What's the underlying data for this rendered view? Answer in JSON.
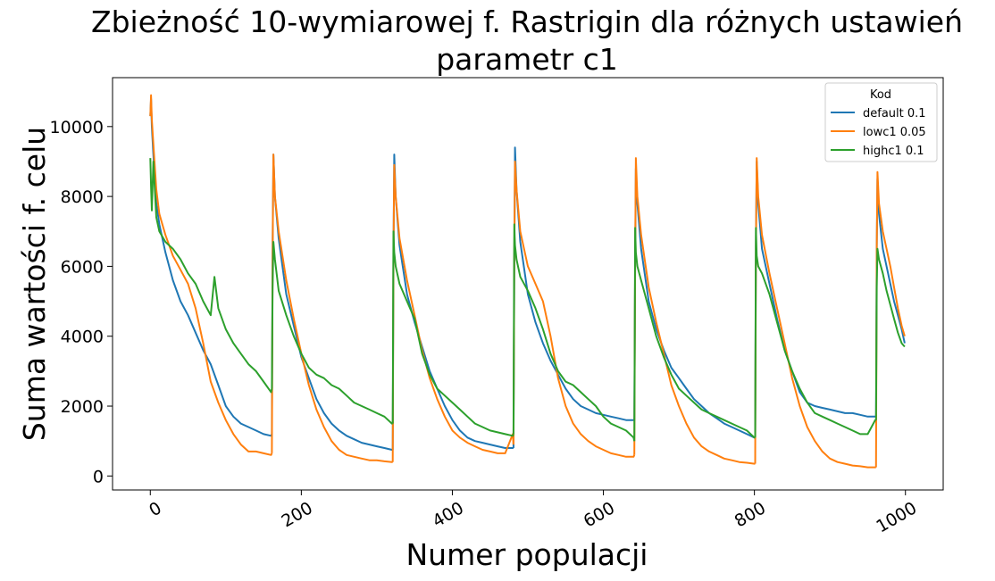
{
  "chart_data": {
    "type": "line",
    "title_line1": "Zbieżność 10-wymiarowej f. Rastrigin dla różnych ustawień",
    "title_line2": "parametr c1",
    "xlabel": "Numer populacji",
    "ylabel": "Suma wartości f. celu",
    "xlim": [
      -50,
      1050
    ],
    "ylim": [
      -400,
      11400
    ],
    "xticks": [
      0,
      200,
      400,
      600,
      800,
      1000
    ],
    "yticks": [
      0,
      2000,
      4000,
      6000,
      8000,
      10000
    ],
    "xtick_rotation": 30,
    "grid": false,
    "legend": {
      "title": "Kod",
      "position": "top-right"
    },
    "series": [
      {
        "name": "default 0.1",
        "color": "#1f77b4",
        "segments": [
          {
            "x": [
              0,
              1,
              2,
              4,
              8,
              12,
              20,
              30,
              40,
              50,
              60,
              70,
              80,
              90,
              100,
              110,
              120,
              130,
              140,
              150,
              160,
              161
            ],
            "y": [
              10300,
              10800,
              10000,
              9200,
              7800,
              7200,
              6400,
              5600,
              5000,
              4600,
              4100,
              3600,
              3200,
              2600,
              2000,
              1700,
              1500,
              1400,
              1300,
              1200,
              1150,
              1200
            ]
          },
          {
            "x": [
              161,
              162,
              163,
              165,
              170,
              180,
              190,
              200,
              210,
              220,
              230,
              240,
              250,
              260,
              270,
              280,
              290,
              300,
              310,
              320,
              321
            ],
            "y": [
              1200,
              6500,
              9200,
              8000,
              6800,
              5200,
              4300,
              3400,
              2800,
              2200,
              1800,
              1500,
              1300,
              1150,
              1050,
              950,
              900,
              850,
              800,
              750,
              750
            ]
          },
          {
            "x": [
              321,
              322,
              323,
              325,
              330,
              340,
              350,
              360,
              370,
              380,
              390,
              400,
              410,
              420,
              430,
              440,
              450,
              460,
              470,
              480,
              481
            ],
            "y": [
              750,
              6200,
              9200,
              8000,
              6600,
              5200,
              4400,
              3700,
              3000,
              2500,
              2000,
              1600,
              1300,
              1100,
              1000,
              950,
              900,
              850,
              800,
              800,
              800
            ]
          },
          {
            "x": [
              481,
              482,
              483,
              485,
              490,
              500,
              510,
              520,
              530,
              540,
              550,
              560,
              570,
              580,
              590,
              600,
              610,
              620,
              630,
              640,
              641
            ],
            "y": [
              800,
              6000,
              9400,
              8200,
              6700,
              5200,
              4400,
              3800,
              3300,
              2900,
              2500,
              2200,
              2000,
              1900,
              1800,
              1750,
              1700,
              1650,
              1600,
              1600,
              1600
            ]
          },
          {
            "x": [
              641,
              642,
              643,
              645,
              650,
              660,
              670,
              680,
              690,
              700,
              710,
              720,
              730,
              740,
              750,
              760,
              770,
              780,
              790,
              800,
              801
            ],
            "y": [
              1600,
              6000,
              8800,
              7800,
              6500,
              5000,
              4200,
              3600,
              3100,
              2800,
              2500,
              2200,
              2000,
              1800,
              1650,
              1500,
              1400,
              1300,
              1200,
              1100,
              1100
            ]
          },
          {
            "x": [
              801,
              802,
              803,
              805,
              810,
              820,
              830,
              840,
              850,
              860,
              870,
              880,
              890,
              900,
              910,
              920,
              930,
              940,
              950,
              960,
              961
            ],
            "y": [
              1100,
              6500,
              9000,
              7800,
              6500,
              5500,
              4500,
              3600,
              3000,
              2400,
              2100,
              2000,
              1950,
              1900,
              1850,
              1800,
              1800,
              1750,
              1700,
              1700,
              1700
            ]
          },
          {
            "x": [
              961,
              962,
              963,
              965,
              970,
              975,
              980,
              985,
              990,
              995,
              999
            ],
            "y": [
              1700,
              6500,
              8500,
              7500,
              6500,
              6000,
              5500,
              5000,
              4600,
              4200,
              3800
            ]
          }
        ]
      },
      {
        "name": "lowc1 0.05",
        "color": "#ff7f0e",
        "segments": [
          {
            "x": [
              0,
              1,
              2,
              4,
              8,
              12,
              20,
              30,
              40,
              50,
              60,
              70,
              80,
              90,
              100,
              110,
              120,
              130,
              140,
              150,
              160,
              161
            ],
            "y": [
              10300,
              10900,
              10200,
              9500,
              8200,
              7500,
              6900,
              6300,
              5900,
              5500,
              4800,
              3800,
              2700,
              2100,
              1600,
              1200,
              900,
              700,
              700,
              650,
              600,
              650
            ]
          },
          {
            "x": [
              161,
              162,
              163,
              165,
              170,
              180,
              190,
              200,
              210,
              220,
              230,
              240,
              250,
              260,
              270,
              280,
              290,
              300,
              310,
              320,
              321
            ],
            "y": [
              650,
              6300,
              9200,
              8000,
              7000,
              5600,
              4500,
              3500,
              2600,
              1900,
              1400,
              1000,
              750,
              600,
              550,
              500,
              450,
              450,
              420,
              400,
              400
            ]
          },
          {
            "x": [
              321,
              322,
              323,
              325,
              330,
              340,
              350,
              360,
              370,
              380,
              390,
              400,
              410,
              420,
              430,
              440,
              450,
              460,
              470,
              480,
              481
            ],
            "y": [
              400,
              6300,
              8900,
              8000,
              6800,
              5600,
              4600,
              3600,
              2800,
              2200,
              1700,
              1300,
              1100,
              950,
              850,
              750,
              700,
              650,
              650,
              1200,
              900
            ]
          },
          {
            "x": [
              481,
              482,
              483,
              485,
              490,
              500,
              510,
              520,
              530,
              540,
              550,
              560,
              570,
              580,
              590,
              600,
              610,
              620,
              630,
              640,
              641
            ],
            "y": [
              900,
              6200,
              9000,
              8200,
              7000,
              6000,
              5500,
              5000,
              4000,
              2800,
              2000,
              1500,
              1200,
              1000,
              850,
              750,
              650,
              600,
              550,
              550,
              600
            ]
          },
          {
            "x": [
              641,
              642,
              643,
              645,
              650,
              660,
              670,
              680,
              690,
              700,
              710,
              720,
              730,
              740,
              750,
              760,
              770,
              780,
              790,
              800,
              801
            ],
            "y": [
              600,
              6200,
              9100,
              8000,
              6900,
              5400,
              4400,
              3500,
              2600,
              2000,
              1500,
              1100,
              850,
              700,
              600,
              500,
              450,
              400,
              380,
              350,
              350
            ]
          },
          {
            "x": [
              801,
              802,
              803,
              805,
              810,
              820,
              830,
              840,
              850,
              860,
              870,
              880,
              890,
              900,
              910,
              920,
              930,
              940,
              950,
              960,
              961
            ],
            "y": [
              350,
              6300,
              9100,
              8000,
              6900,
              5800,
              4800,
              3800,
              2800,
              2000,
              1400,
              1000,
              700,
              500,
              400,
              350,
              300,
              280,
              250,
              250,
              250
            ]
          },
          {
            "x": [
              961,
              962,
              963,
              965,
              970,
              975,
              980,
              985,
              990,
              995,
              999
            ],
            "y": [
              250,
              6500,
              8700,
              7800,
              7000,
              6500,
              6000,
              5400,
              4800,
              4300,
              4000
            ]
          }
        ]
      },
      {
        "name": "highc1 0.1",
        "color": "#2ca02c",
        "segments": [
          {
            "x": [
              0,
              1,
              2,
              4,
              8,
              12,
              20,
              30,
              40,
              50,
              60,
              70,
              80,
              85,
              90,
              100,
              110,
              120,
              130,
              140,
              150,
              160,
              161
            ],
            "y": [
              9100,
              8300,
              7600,
              9000,
              7400,
              7000,
              6700,
              6500,
              6200,
              5800,
              5500,
              5000,
              4600,
              5700,
              4800,
              4200,
              3800,
              3500,
              3200,
              3000,
              2700,
              2400,
              2500
            ]
          },
          {
            "x": [
              161,
              162,
              163,
              165,
              170,
              180,
              190,
              200,
              210,
              220,
              230,
              240,
              250,
              260,
              270,
              280,
              290,
              300,
              310,
              320,
              321
            ],
            "y": [
              2500,
              5400,
              6700,
              6200,
              5300,
              4600,
              4000,
              3500,
              3100,
              2900,
              2800,
              2600,
              2500,
              2300,
              2100,
              2000,
              1900,
              1800,
              1700,
              1500,
              1500
            ]
          },
          {
            "x": [
              321,
              322,
              323,
              325,
              330,
              340,
              350,
              360,
              370,
              380,
              390,
              400,
              410,
              420,
              430,
              440,
              450,
              460,
              470,
              480,
              481
            ],
            "y": [
              1500,
              7000,
              6400,
              6000,
              5500,
              5000,
              4500,
              3500,
              2900,
              2500,
              2300,
              2100,
              1900,
              1700,
              1500,
              1400,
              1300,
              1250,
              1200,
              1150,
              1200
            ]
          },
          {
            "x": [
              481,
              482,
              483,
              485,
              490,
              500,
              510,
              520,
              530,
              540,
              550,
              560,
              570,
              580,
              590,
              600,
              610,
              620,
              630,
              640,
              641
            ],
            "y": [
              1200,
              7200,
              6600,
              6200,
              5700,
              5300,
              4800,
              4200,
              3500,
              3000,
              2700,
              2600,
              2400,
              2200,
              2000,
              1700,
              1500,
              1400,
              1300,
              1100,
              1000
            ]
          },
          {
            "x": [
              641,
              642,
              643,
              645,
              650,
              660,
              670,
              680,
              690,
              700,
              710,
              720,
              730,
              740,
              750,
              760,
              770,
              780,
              790,
              800,
              801
            ],
            "y": [
              1000,
              7100,
              6400,
              6000,
              5600,
              4800,
              4000,
              3400,
              2900,
              2500,
              2300,
              2100,
              1900,
              1800,
              1700,
              1600,
              1500,
              1400,
              1300,
              1100,
              1100
            ]
          },
          {
            "x": [
              801,
              802,
              803,
              805,
              810,
              820,
              830,
              840,
              850,
              860,
              870,
              880,
              890,
              900,
              910,
              920,
              930,
              940,
              950,
              960,
              961
            ],
            "y": [
              1100,
              7100,
              6300,
              6000,
              5800,
              5200,
              4400,
              3600,
              3000,
              2500,
              2100,
              1800,
              1700,
              1600,
              1500,
              1400,
              1300,
              1200,
              1200,
              1600,
              1600
            ]
          },
          {
            "x": [
              961,
              962,
              963,
              965,
              970,
              975,
              980,
              985,
              990,
              995,
              999
            ],
            "y": [
              1600,
              5400,
              6500,
              6200,
              5800,
              5300,
              4900,
              4500,
              4100,
              3800,
              3700
            ]
          }
        ]
      }
    ]
  }
}
